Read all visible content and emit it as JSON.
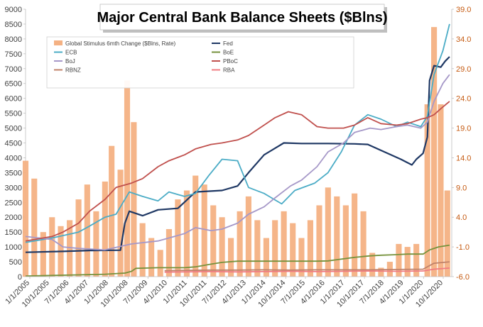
{
  "chart_data": {
    "type": "line",
    "title": "Major Central Bank Balance Sheets ($Blns)",
    "y_left": {
      "ylim": [
        0,
        9000
      ],
      "ticks": [
        "0",
        "500",
        "1000",
        "1500",
        "2000",
        "2500",
        "3000",
        "3500",
        "4000",
        "4500",
        "5000",
        "5500",
        "6000",
        "6500",
        "7000",
        "7500",
        "8000",
        "8500",
        "9000"
      ]
    },
    "y_right": {
      "ylim": [
        -6.0,
        39.0
      ],
      "ticks": [
        "-6.0",
        "-1.0",
        "4.0",
        "9.0",
        "14.0",
        "19.0",
        "24.0",
        "29.0",
        "34.0",
        "39.0"
      ]
    },
    "x_range": [
      "2005-01-01",
      "2021-01-31"
    ],
    "x_tick_labels": [
      "1/1/2005",
      "10/1/2005",
      "7/1/2006",
      "4/1/2007",
      "1/1/2008",
      "10/1/2008",
      "7/1/2009",
      "4/1/2010",
      "1/1/2011",
      "10/1/2011",
      "7/1/2012",
      "4/1/2013",
      "1/1/2014",
      "10/1/2014",
      "7/1/2015",
      "4/1/2016",
      "1/1/2017",
      "10/1/2017",
      "7/1/2018",
      "4/1/2019",
      "1/1/2020",
      "10/1/2020"
    ],
    "legend_position": "top-left",
    "grid": false,
    "bar_series": {
      "name": "Global Stimulus 6mth Change ($Blns, Rate)",
      "axis": "right",
      "color": "#f4b183",
      "points": [
        [
          "2005-01",
          13.5
        ],
        [
          "2005-05",
          10.5
        ],
        [
          "2005-09",
          1.5
        ],
        [
          "2006-01",
          4.0
        ],
        [
          "2006-05",
          2.5
        ],
        [
          "2006-09",
          3.5
        ],
        [
          "2007-01",
          7.0
        ],
        [
          "2007-05",
          9.5
        ],
        [
          "2007-09",
          5.0
        ],
        [
          "2008-01",
          10.0
        ],
        [
          "2008-04",
          16.0
        ],
        [
          "2008-08",
          12.0
        ],
        [
          "2008-11",
          27.0
        ],
        [
          "2009-02",
          20.0
        ],
        [
          "2009-06",
          3.0
        ],
        [
          "2009-10",
          0.5
        ],
        [
          "2010-02",
          -1.5
        ],
        [
          "2010-06",
          2.0
        ],
        [
          "2010-10",
          7.0
        ],
        [
          "2011-02",
          8.5
        ],
        [
          "2011-06",
          11.0
        ],
        [
          "2011-10",
          9.5
        ],
        [
          "2012-02",
          6.0
        ],
        [
          "2012-06",
          4.0
        ],
        [
          "2012-10",
          0.5
        ],
        [
          "2013-02",
          5.0
        ],
        [
          "2013-06",
          7.5
        ],
        [
          "2013-10",
          3.5
        ],
        [
          "2014-02",
          0.5
        ],
        [
          "2014-06",
          3.5
        ],
        [
          "2014-10",
          5.0
        ],
        [
          "2015-02",
          3.0
        ],
        [
          "2015-06",
          0.5
        ],
        [
          "2015-10",
          3.5
        ],
        [
          "2016-02",
          6.0
        ],
        [
          "2016-06",
          9.0
        ],
        [
          "2016-10",
          7.5
        ],
        [
          "2017-02",
          6.0
        ],
        [
          "2017-06",
          8.0
        ],
        [
          "2017-10",
          5.0
        ],
        [
          "2018-02",
          -2.0
        ],
        [
          "2018-06",
          -4.5
        ],
        [
          "2018-10",
          -3.5
        ],
        [
          "2019-02",
          -0.5
        ],
        [
          "2019-06",
          -1.0
        ],
        [
          "2019-10",
          -0.5
        ],
        [
          "2020-03",
          23.0
        ],
        [
          "2020-06",
          36.0
        ],
        [
          "2020-09",
          23.0
        ],
        [
          "2020-12",
          8.5
        ]
      ]
    },
    "series": [
      {
        "name": "Fed",
        "color": "#1f3864",
        "width": 2.2,
        "points": [
          [
            "2005-01",
            820
          ],
          [
            "2006-06",
            850
          ],
          [
            "2007-06",
            880
          ],
          [
            "2008-08",
            890
          ],
          [
            "2008-10",
            1800
          ],
          [
            "2008-12",
            2200
          ],
          [
            "2009-06",
            2050
          ],
          [
            "2010-01",
            2250
          ],
          [
            "2010-10",
            2300
          ],
          [
            "2011-06",
            2850
          ],
          [
            "2012-06",
            2900
          ],
          [
            "2013-01",
            3050
          ],
          [
            "2013-06",
            3500
          ],
          [
            "2014-01",
            4100
          ],
          [
            "2014-10",
            4500
          ],
          [
            "2015-06",
            4480
          ],
          [
            "2016-06",
            4480
          ],
          [
            "2017-06",
            4470
          ],
          [
            "2017-12",
            4450
          ],
          [
            "2018-06",
            4250
          ],
          [
            "2019-03",
            3950
          ],
          [
            "2019-08",
            3760
          ],
          [
            "2019-10",
            3950
          ],
          [
            "2020-01",
            4150
          ],
          [
            "2020-03",
            4700
          ],
          [
            "2020-04",
            6600
          ],
          [
            "2020-06",
            7100
          ],
          [
            "2020-09",
            7050
          ],
          [
            "2020-11",
            7250
          ],
          [
            "2021-01",
            7400
          ]
        ]
      },
      {
        "name": "ECB",
        "color": "#4bacc6",
        "width": 1.8,
        "points": [
          [
            "2005-01",
            1150
          ],
          [
            "2006-01",
            1300
          ],
          [
            "2007-01",
            1500
          ],
          [
            "2007-06",
            1700
          ],
          [
            "2008-01",
            2000
          ],
          [
            "2008-06",
            2100
          ],
          [
            "2008-12",
            2850
          ],
          [
            "2009-06",
            2700
          ],
          [
            "2010-01",
            2550
          ],
          [
            "2010-06",
            2850
          ],
          [
            "2011-01",
            2700
          ],
          [
            "2011-06",
            2800
          ],
          [
            "2011-12",
            3400
          ],
          [
            "2012-06",
            3950
          ],
          [
            "2013-01",
            3900
          ],
          [
            "2013-06",
            3000
          ],
          [
            "2014-01",
            2800
          ],
          [
            "2014-09",
            2450
          ],
          [
            "2015-03",
            2900
          ],
          [
            "2015-12",
            3150
          ],
          [
            "2016-06",
            3500
          ],
          [
            "2016-12",
            4200
          ],
          [
            "2017-06",
            5100
          ],
          [
            "2017-12",
            5450
          ],
          [
            "2018-06",
            5300
          ],
          [
            "2019-01",
            5050
          ],
          [
            "2019-06",
            5200
          ],
          [
            "2019-12",
            5050
          ],
          [
            "2020-03",
            5400
          ],
          [
            "2020-06",
            6800
          ],
          [
            "2020-10",
            7600
          ],
          [
            "2021-01",
            8500
          ]
        ]
      },
      {
        "name": "BoJ",
        "color": "#a698c8",
        "width": 1.8,
        "points": [
          [
            "2005-01",
            1350
          ],
          [
            "2006-01",
            1250
          ],
          [
            "2006-06",
            1000
          ],
          [
            "2007-01",
            950
          ],
          [
            "2008-01",
            900
          ],
          [
            "2009-01",
            1100
          ],
          [
            "2010-01",
            1200
          ],
          [
            "2010-06",
            1300
          ],
          [
            "2011-01",
            1450
          ],
          [
            "2011-06",
            1650
          ],
          [
            "2012-01",
            1550
          ],
          [
            "2012-06",
            1600
          ],
          [
            "2013-01",
            1800
          ],
          [
            "2013-06",
            2100
          ],
          [
            "2014-01",
            2350
          ],
          [
            "2014-06",
            2650
          ],
          [
            "2015-01",
            3050
          ],
          [
            "2015-06",
            3250
          ],
          [
            "2016-01",
            3700
          ],
          [
            "2016-06",
            4200
          ],
          [
            "2017-01",
            4500
          ],
          [
            "2017-06",
            4850
          ],
          [
            "2018-01",
            5000
          ],
          [
            "2018-06",
            4950
          ],
          [
            "2019-01",
            5050
          ],
          [
            "2019-06",
            5100
          ],
          [
            "2019-12",
            5000
          ],
          [
            "2020-03",
            5200
          ],
          [
            "2020-06",
            5900
          ],
          [
            "2020-10",
            6500
          ],
          [
            "2021-01",
            6800
          ]
        ]
      },
      {
        "name": "PBoC",
        "color": "#c0504d",
        "width": 1.8,
        "points": [
          [
            "2005-01",
            1200
          ],
          [
            "2006-01",
            1350
          ],
          [
            "2006-06",
            1500
          ],
          [
            "2007-01",
            1800
          ],
          [
            "2007-06",
            2200
          ],
          [
            "2008-01",
            2600
          ],
          [
            "2008-06",
            3000
          ],
          [
            "2009-01",
            3150
          ],
          [
            "2009-06",
            3300
          ],
          [
            "2010-01",
            3700
          ],
          [
            "2010-06",
            3900
          ],
          [
            "2011-01",
            4100
          ],
          [
            "2011-06",
            4300
          ],
          [
            "2012-01",
            4450
          ],
          [
            "2012-06",
            4500
          ],
          [
            "2013-01",
            4600
          ],
          [
            "2013-06",
            4750
          ],
          [
            "2014-01",
            5100
          ],
          [
            "2014-06",
            5350
          ],
          [
            "2014-12",
            5550
          ],
          [
            "2015-06",
            5450
          ],
          [
            "2016-01",
            5050
          ],
          [
            "2016-06",
            5000
          ],
          [
            "2017-01",
            5000
          ],
          [
            "2017-06",
            5100
          ],
          [
            "2017-12",
            5350
          ],
          [
            "2018-06",
            5150
          ],
          [
            "2019-01",
            5100
          ],
          [
            "2019-06",
            5150
          ],
          [
            "2019-12",
            5300
          ],
          [
            "2020-03",
            5350
          ],
          [
            "2020-06",
            5450
          ],
          [
            "2020-09",
            5650
          ],
          [
            "2021-01",
            5900
          ]
        ]
      },
      {
        "name": "BoE",
        "color": "#76923c",
        "width": 1.8,
        "points": [
          [
            "2005-01",
            20
          ],
          [
            "2006-01",
            40
          ],
          [
            "2007-01",
            60
          ],
          [
            "2008-01",
            80
          ],
          [
            "2008-10",
            120
          ],
          [
            "2009-01",
            180
          ],
          [
            "2009-03",
            280
          ],
          [
            "2010-01",
            300
          ],
          [
            "2011-01",
            300
          ],
          [
            "2011-06",
            330
          ],
          [
            "2012-01",
            420
          ],
          [
            "2012-06",
            480
          ],
          [
            "2013-01",
            520
          ],
          [
            "2014-01",
            520
          ],
          [
            "2015-01",
            520
          ],
          [
            "2016-01",
            520
          ],
          [
            "2016-06",
            530
          ],
          [
            "2017-01",
            600
          ],
          [
            "2017-06",
            650
          ],
          [
            "2018-01",
            700
          ],
          [
            "2018-06",
            720
          ],
          [
            "2019-01",
            740
          ],
          [
            "2019-06",
            760
          ],
          [
            "2020-01",
            760
          ],
          [
            "2020-04",
            900
          ],
          [
            "2020-08",
            1000
          ],
          [
            "2021-01",
            1060
          ]
        ]
      },
      {
        "name": "RBNZ",
        "color": "#c0826a",
        "width": 1.8,
        "points": [
          [
            "2010-04",
            200
          ],
          [
            "2011-01",
            210
          ],
          [
            "2012-01",
            220
          ],
          [
            "2013-01",
            220
          ],
          [
            "2014-01",
            230
          ],
          [
            "2015-01",
            220
          ],
          [
            "2016-01",
            230
          ],
          [
            "2017-01",
            230
          ],
          [
            "2018-01",
            230
          ],
          [
            "2019-01",
            240
          ],
          [
            "2020-01",
            250
          ],
          [
            "2020-06",
            450
          ],
          [
            "2021-01",
            500
          ]
        ]
      },
      {
        "name": "RBA",
        "color": "#f07c82",
        "width": 1.8,
        "points": [
          [
            "2010-04",
            150
          ],
          [
            "2011-01",
            160
          ],
          [
            "2012-01",
            170
          ],
          [
            "2013-01",
            160
          ],
          [
            "2014-01",
            170
          ],
          [
            "2015-01",
            180
          ],
          [
            "2016-01",
            170
          ],
          [
            "2017-01",
            180
          ],
          [
            "2018-01",
            190
          ],
          [
            "2019-01",
            180
          ],
          [
            "2020-01",
            190
          ],
          [
            "2020-06",
            250
          ],
          [
            "2021-01",
            290
          ]
        ]
      }
    ]
  }
}
